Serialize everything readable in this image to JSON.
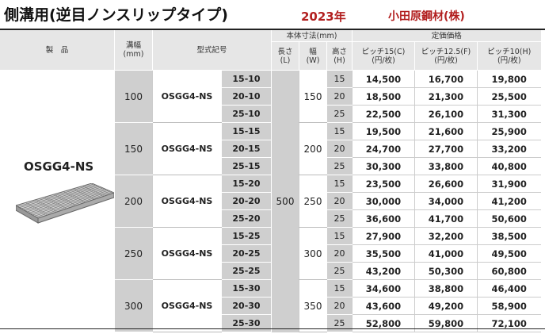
{
  "title": "側溝用(逆目ノンスリップタイプ)",
  "year": "2023年",
  "maker": "小田原鋼材(株)",
  "headers": {
    "product": "製　品",
    "groove_width": "溝幅\n(mm)",
    "model": "型式記号",
    "dimensions": "本体寸法(mm)",
    "length": "長さ\n(L)",
    "width": "幅\n(W)",
    "height": "高さ\n(H)",
    "price": "定価価格",
    "pitch15": "ピッチ15(C)\n(円/枚)",
    "pitch125": "ピッチ12.5(F)\n(円/枚)",
    "pitch10": "ピッチ10(H)\n(円/枚)"
  },
  "product_name": "OSGG4-NS",
  "length": "500",
  "groups": [
    {
      "groove": "100",
      "model": "OSGG4-NS",
      "width": "150",
      "rows": [
        {
          "sub": "15-10",
          "h": "15",
          "p15": "14,500",
          "p125": "16,700",
          "p10": "19,800"
        },
        {
          "sub": "20-10",
          "h": "20",
          "p15": "18,500",
          "p125": "21,300",
          "p10": "25,500"
        },
        {
          "sub": "25-10",
          "h": "25",
          "p15": "22,500",
          "p125": "26,100",
          "p10": "31,300"
        }
      ]
    },
    {
      "groove": "150",
      "model": "OSGG4-NS",
      "width": "200",
      "rows": [
        {
          "sub": "15-15",
          "h": "15",
          "p15": "19,500",
          "p125": "21,600",
          "p10": "25,900"
        },
        {
          "sub": "20-15",
          "h": "20",
          "p15": "24,700",
          "p125": "27,700",
          "p10": "33,200"
        },
        {
          "sub": "25-15",
          "h": "25",
          "p15": "30,300",
          "p125": "33,800",
          "p10": "40,800"
        }
      ]
    },
    {
      "groove": "200",
      "model": "OSGG4-NS",
      "width": "250",
      "rows": [
        {
          "sub": "15-20",
          "h": "15",
          "p15": "23,500",
          "p125": "26,600",
          "p10": "31,900"
        },
        {
          "sub": "20-20",
          "h": "20",
          "p15": "30,000",
          "p125": "34,000",
          "p10": "41,200"
        },
        {
          "sub": "25-20",
          "h": "25",
          "p15": "36,600",
          "p125": "41,700",
          "p10": "50,600"
        }
      ]
    },
    {
      "groove": "250",
      "model": "OSGG4-NS",
      "width": "300",
      "rows": [
        {
          "sub": "15-25",
          "h": "15",
          "p15": "27,900",
          "p125": "32,200",
          "p10": "38,500"
        },
        {
          "sub": "20-25",
          "h": "20",
          "p15": "35,500",
          "p125": "41,000",
          "p10": "49,500"
        },
        {
          "sub": "25-25",
          "h": "25",
          "p15": "43,200",
          "p125": "50,300",
          "p10": "60,800"
        }
      ]
    },
    {
      "groove": "300",
      "model": "OSGG4-NS",
      "width": "350",
      "rows": [
        {
          "sub": "15-30",
          "h": "15",
          "p15": "34,600",
          "p125": "38,800",
          "p10": "46,400"
        },
        {
          "sub": "20-30",
          "h": "20",
          "p15": "43,600",
          "p125": "49,200",
          "p10": "58,900"
        },
        {
          "sub": "25-30",
          "h": "25",
          "p15": "52,800",
          "p125": "59,800",
          "p10": "72,100"
        }
      ]
    }
  ]
}
